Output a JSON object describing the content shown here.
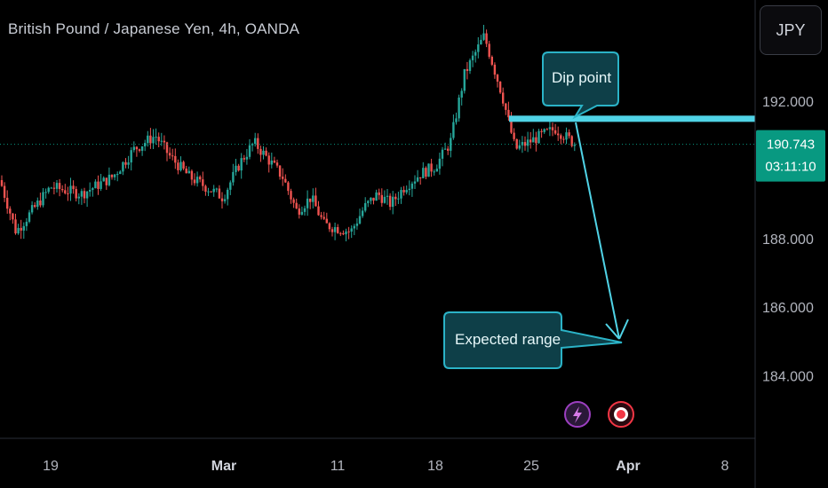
{
  "title": "British Pound / Japanese Yen, 4h, OANDA",
  "currency": "JPY",
  "current_price": "190.743",
  "countdown": "03:11:10",
  "callouts": {
    "dip": "Dip point",
    "expected": "Expected range"
  },
  "colors": {
    "up": "#26a69a",
    "down": "#ef5350",
    "accent": "#50d3e6",
    "label_bg": "#089981",
    "callout_bg": "#0e3f48",
    "callout_border": "#2bb3c7"
  },
  "icons": {
    "flash": "lightning-icon",
    "record": "record-icon"
  },
  "chart_data": {
    "type": "candlestick",
    "title": "British Pound / Japanese Yen, 4h, OANDA",
    "y_ticks": [
      "192.000",
      "188.000",
      "186.000",
      "184.000"
    ],
    "x_ticks": [
      "19",
      "Mar",
      "11",
      "18",
      "25",
      "Apr",
      "8"
    ],
    "bold_x_ticks": [
      "Mar",
      "Apr"
    ],
    "ylim": [
      182.0,
      194.8
    ],
    "current_price": 190.743,
    "resistance_level": 191.5,
    "projection_target": 184.8,
    "grid": false,
    "series_outline": [
      {
        "x": "Feb 16",
        "y": 189.7
      },
      {
        "x": "Feb 17",
        "y": 188.2
      },
      {
        "x": "Feb 19",
        "y": 189.5
      },
      {
        "x": "Feb 21",
        "y": 189.3
      },
      {
        "x": "Feb 23",
        "y": 189.8
      },
      {
        "x": "Feb 25",
        "y": 190.6
      },
      {
        "x": "Feb 27",
        "y": 191.0
      },
      {
        "x": "Feb 28",
        "y": 190.4
      },
      {
        "x": "Feb 29",
        "y": 189.8
      },
      {
        "x": "Mar 1",
        "y": 189.2
      },
      {
        "x": "Mar 3",
        "y": 190.2
      },
      {
        "x": "Mar 4",
        "y": 190.8
      },
      {
        "x": "Mar 5",
        "y": 190.3
      },
      {
        "x": "Mar 6",
        "y": 189.8
      },
      {
        "x": "Mar 7",
        "y": 188.8
      },
      {
        "x": "Mar 8",
        "y": 189.2
      },
      {
        "x": "Mar 10",
        "y": 188.4
      },
      {
        "x": "Mar 11",
        "y": 188.2
      },
      {
        "x": "Mar 12",
        "y": 188.9
      },
      {
        "x": "Mar 13",
        "y": 189.3
      },
      {
        "x": "Mar 14",
        "y": 189.0
      },
      {
        "x": "Mar 15",
        "y": 189.5
      },
      {
        "x": "Mar 17",
        "y": 189.9
      },
      {
        "x": "Mar 18",
        "y": 190.1
      },
      {
        "x": "Mar 19",
        "y": 190.8
      },
      {
        "x": "Mar 20",
        "y": 192.8
      },
      {
        "x": "Mar 21",
        "y": 193.9
      },
      {
        "x": "Mar 22",
        "y": 192.2
      },
      {
        "x": "Mar 23",
        "y": 190.6
      },
      {
        "x": "Mar 25",
        "y": 190.9
      },
      {
        "x": "Mar 26",
        "y": 191.2
      },
      {
        "x": "Mar 27",
        "y": 190.743
      }
    ]
  }
}
